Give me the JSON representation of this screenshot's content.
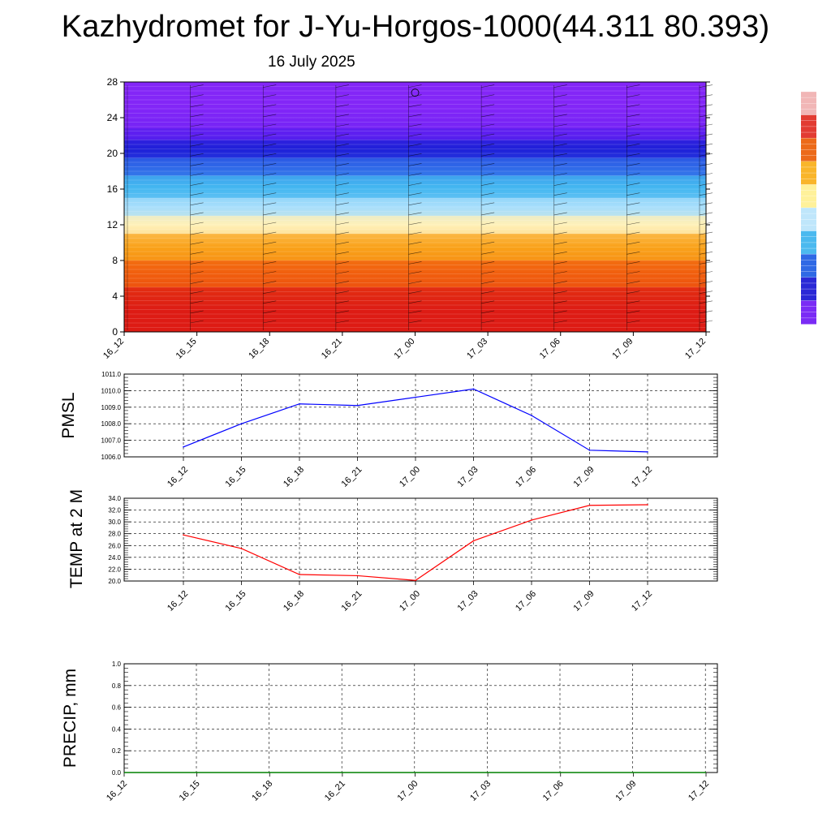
{
  "title": "Kazhydromet for J-Yu-Horgos-1000(44.311 80.393)",
  "date": "16 July 2025",
  "chart_data": [
    {
      "type": "heatmap",
      "id": "height-time-section",
      "x_tick_labels": [
        "16_12",
        "16_15",
        "16_18",
        "16_21",
        "17_00",
        "17_03",
        "17_06",
        "17_09",
        "17_12"
      ],
      "ylim": [
        0,
        28
      ],
      "y_ticks": [
        0,
        4,
        8,
        12,
        16,
        20,
        24,
        28
      ],
      "bands": [
        {
          "from": 0,
          "to": 5,
          "color": "#dd1c14"
        },
        {
          "from": 5,
          "to": 8,
          "color": "#f15e0e"
        },
        {
          "from": 8,
          "to": 11,
          "color": "#f9a21a"
        },
        {
          "from": 11,
          "to": 13,
          "color": "#fff1b8"
        },
        {
          "from": 13,
          "to": 15,
          "color": "#a7defc"
        },
        {
          "from": 15,
          "to": 17.5,
          "color": "#43b6f0"
        },
        {
          "from": 17.5,
          "to": 19.5,
          "color": "#2f67e8"
        },
        {
          "from": 19.5,
          "to": 21.5,
          "color": "#1f20d8"
        },
        {
          "from": 21.5,
          "to": 22.8,
          "color": "#5d1ff0"
        },
        {
          "from": 22.8,
          "to": 28,
          "color": "#8427f7"
        }
      ],
      "grid": true,
      "colorbar": [
        "#f1b6b6",
        "#e23b32",
        "#ec6a1a",
        "#f9b52a",
        "#fff19a",
        "#bfe6fb",
        "#4bb9ef",
        "#2f69e5",
        "#2a28d6",
        "#7a2bf5"
      ]
    },
    {
      "type": "line",
      "id": "pmsl",
      "ylabel": "PMSL",
      "categories": [
        "16_12",
        "16_15",
        "16_18",
        "16_21",
        "17_00",
        "17_03",
        "17_06",
        "17_09",
        "17_12"
      ],
      "values": [
        1006.6,
        1008.0,
        1009.2,
        1009.1,
        1009.6,
        1010.1,
        1008.5,
        1006.4,
        1006.3
      ],
      "ylim": [
        1006.0,
        1011.0
      ],
      "y_ticks": [
        "1006.0",
        "1007.0",
        "1008.0",
        "1009.0",
        "1010.0",
        "1011.0"
      ],
      "color": "#0000ff",
      "grid": true
    },
    {
      "type": "line",
      "id": "temp-2m",
      "ylabel": "TEMP at 2 M",
      "categories": [
        "16_12",
        "16_15",
        "16_18",
        "16_21",
        "17_00",
        "17_03",
        "17_06",
        "17_09",
        "17_12"
      ],
      "values": [
        27.8,
        25.5,
        21.1,
        20.9,
        20.1,
        26.8,
        30.3,
        32.8,
        32.9
      ],
      "ylim": [
        20.0,
        34.0
      ],
      "y_ticks": [
        "20.0",
        "22.0",
        "24.0",
        "26.0",
        "28.0",
        "30.0",
        "32.0",
        "34.0"
      ],
      "color": "#ff0000",
      "grid": true
    },
    {
      "type": "line",
      "id": "precip",
      "ylabel": "PRECIP, mm",
      "categories": [
        "16_12",
        "16_15",
        "16_18",
        "16_21",
        "17_00",
        "17_03",
        "17_06",
        "17_09",
        "17_12"
      ],
      "values": [
        0,
        0,
        0,
        0,
        0,
        0,
        0,
        0,
        0
      ],
      "ylim": [
        0.0,
        1.0
      ],
      "y_ticks": [
        "0.0",
        "0.2",
        "0.4",
        "0.6",
        "0.8",
        "1.0"
      ],
      "color": "#008000",
      "grid": true
    }
  ]
}
